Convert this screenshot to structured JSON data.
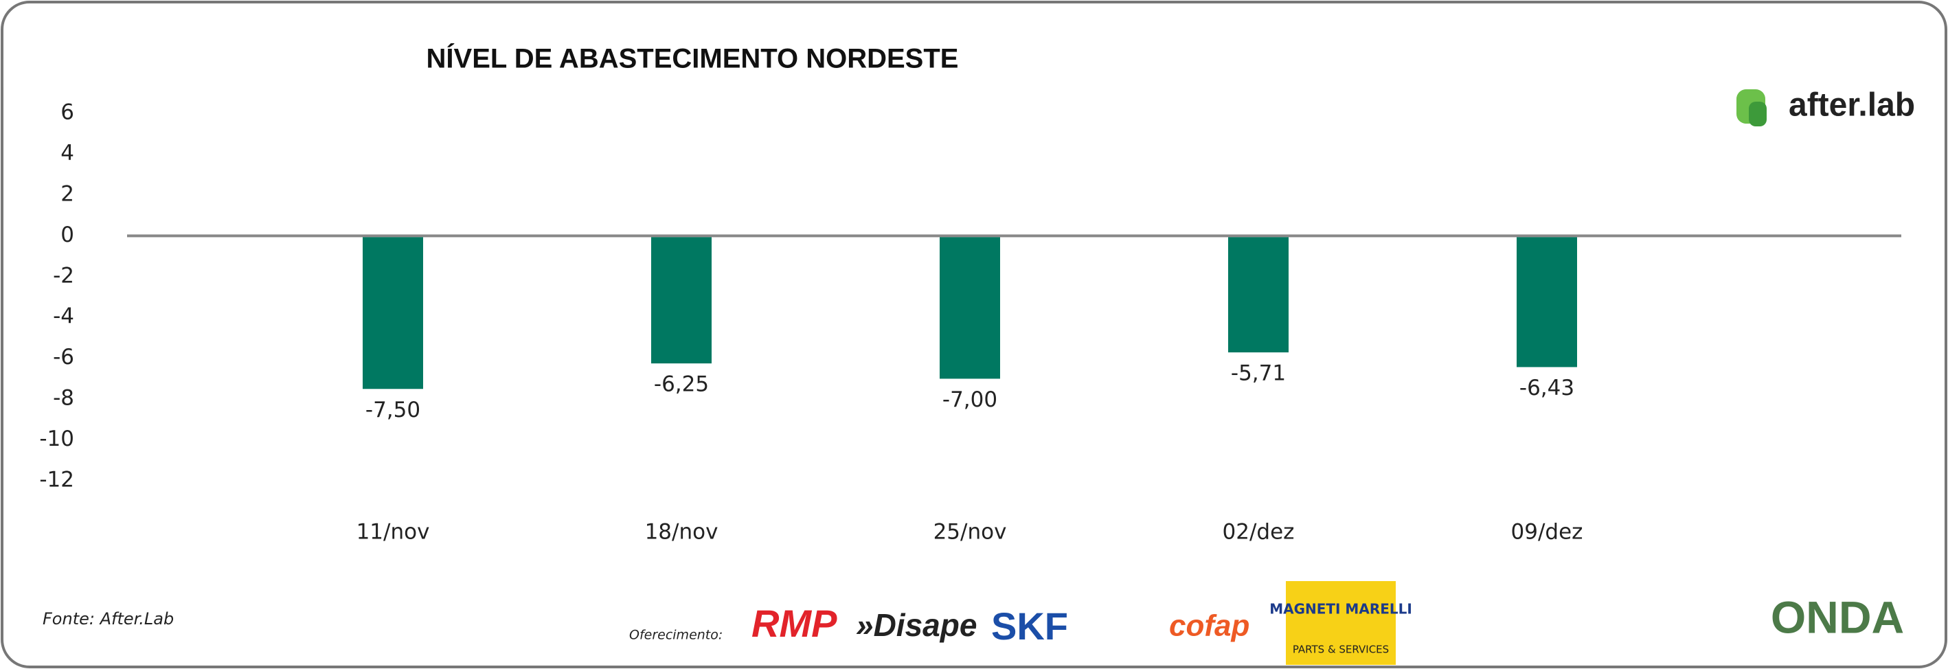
{
  "chart_data": {
    "type": "bar",
    "title": "NÍVEL DE ABASTECIMENTO NORDESTE",
    "categories": [
      "11/nov",
      "18/nov",
      "25/nov",
      "02/dez",
      "09/dez"
    ],
    "values": [
      -7.5,
      -6.25,
      -7.0,
      -5.71,
      -6.43
    ],
    "value_labels": [
      "-7,50",
      "-6,25",
      "-7,00",
      "-5,71",
      "-6,43"
    ],
    "color": "#007861",
    "ylim": [
      -12,
      6
    ],
    "yticks": [
      6,
      4,
      2,
      0,
      -2,
      -4,
      -6,
      -8,
      -10,
      -12
    ]
  },
  "brand": "after.lab",
  "source": "Fonte: After.Lab",
  "sponsor_label": "Oferecimento:",
  "sponsors": [
    "RMP",
    "»Disape",
    "SKF",
    "cofap",
    "MAGNETI MARELLI",
    "PARTS & SERVICES"
  ],
  "footer_logo": "ONDA"
}
